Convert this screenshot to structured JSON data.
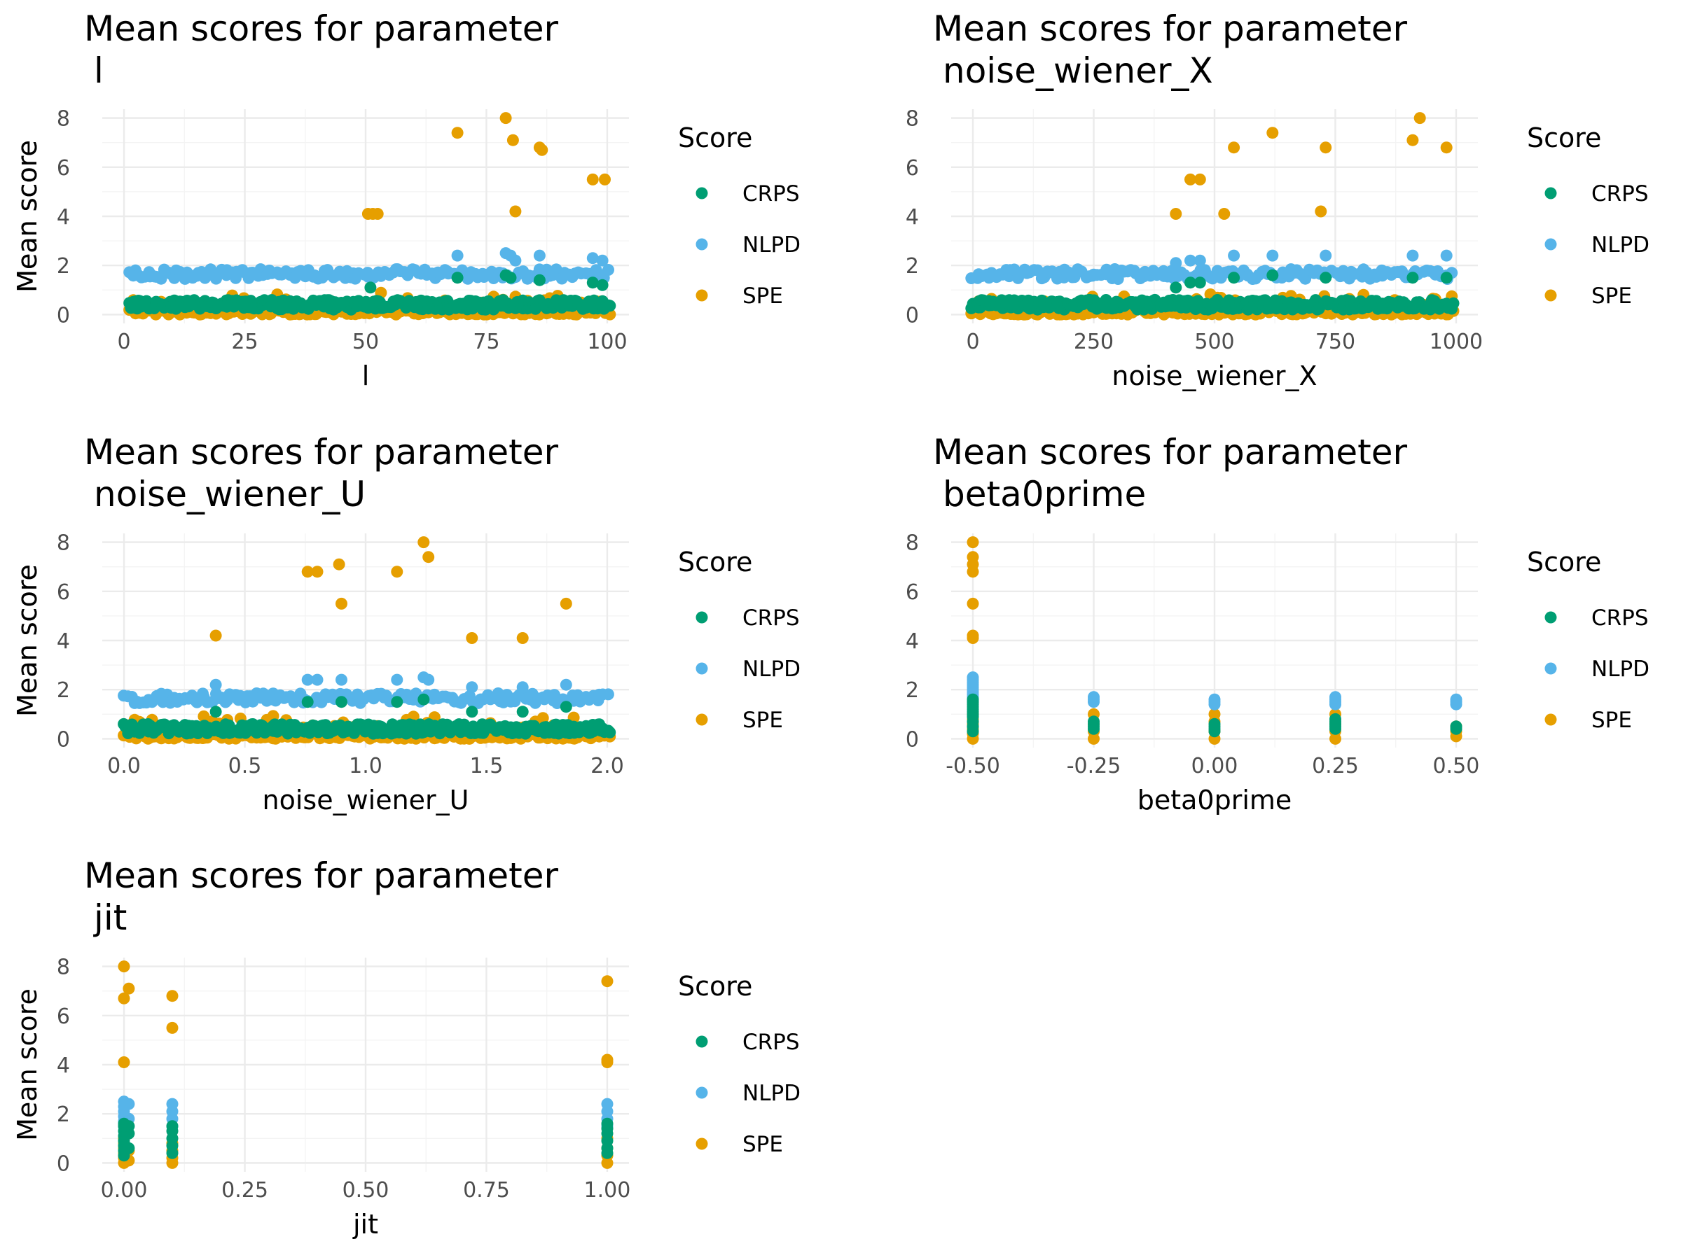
{
  "chart_data": [
    {
      "type": "scatter",
      "title": "Mean scores for parameter",
      "title_param": "l",
      "xlabel": "l",
      "ylabel": "Mean score",
      "xlim": [
        0,
        100
      ],
      "ylim": [
        0,
        8
      ],
      "xticks": [
        0,
        25,
        50,
        75,
        100
      ],
      "xtick_labels": [
        "0",
        "25",
        "50",
        "75",
        "100"
      ],
      "yticks": [
        0,
        2,
        4,
        6,
        8
      ],
      "ytick_labels": [
        "0",
        "2",
        "4",
        "6",
        "8"
      ],
      "x_range_observed": [
        1,
        100
      ],
      "bands": {
        "CRPS": [
          0.2,
          0.6
        ],
        "NLPD": [
          1.45,
          1.85
        ],
        "SPE": [
          0.0,
          1.0
        ]
      },
      "outliers": {
        "SPE": [
          [
            50.5,
            4.1
          ],
          [
            51.5,
            4.1
          ],
          [
            52.5,
            4.1
          ],
          [
            69,
            7.4
          ],
          [
            79,
            8.0
          ],
          [
            80.5,
            7.1
          ],
          [
            81,
            4.2
          ],
          [
            86,
            6.8
          ],
          [
            86.5,
            6.7
          ],
          [
            97,
            5.5
          ],
          [
            99.5,
            5.5
          ]
        ],
        "NLPD": [
          [
            69,
            2.4
          ],
          [
            79,
            2.5
          ],
          [
            80,
            2.4
          ],
          [
            81,
            2.2
          ],
          [
            86,
            2.4
          ],
          [
            97,
            2.3
          ],
          [
            99,
            2.2
          ]
        ],
        "CRPS": [
          [
            51,
            1.1
          ],
          [
            69,
            1.5
          ],
          [
            79,
            1.6
          ],
          [
            80,
            1.5
          ],
          [
            86,
            1.4
          ],
          [
            97,
            1.3
          ],
          [
            99,
            1.2
          ]
        ]
      }
    },
    {
      "type": "scatter",
      "title": "Mean scores for parameter",
      "title_param": "noise_wiener_X",
      "xlabel": "noise_wiener_X",
      "ylabel": "Mean score",
      "xlim": [
        0,
        1000
      ],
      "ylim": [
        0,
        8
      ],
      "xticks": [
        0,
        250,
        500,
        750,
        1000
      ],
      "xtick_labels": [
        "0",
        "250",
        "500",
        "750",
        "1000"
      ],
      "yticks": [
        0,
        2,
        4,
        6,
        8
      ],
      "ytick_labels": [
        "0",
        "2",
        "4",
        "6",
        "8"
      ],
      "x_range_observed": [
        0,
        990
      ],
      "bands": {
        "CRPS": [
          0.2,
          0.6
        ],
        "NLPD": [
          1.45,
          1.85
        ],
        "SPE": [
          0.0,
          1.0
        ]
      },
      "outliers": {
        "SPE": [
          [
            420,
            4.1
          ],
          [
            450,
            5.5
          ],
          [
            470,
            5.5
          ],
          [
            520,
            4.1
          ],
          [
            540,
            6.8
          ],
          [
            620,
            7.4
          ],
          [
            720,
            4.2
          ],
          [
            730,
            6.8
          ],
          [
            910,
            7.1
          ],
          [
            925,
            8.0
          ],
          [
            980,
            6.8
          ]
        ],
        "NLPD": [
          [
            420,
            2.1
          ],
          [
            450,
            2.2
          ],
          [
            470,
            2.2
          ],
          [
            540,
            2.4
          ],
          [
            620,
            2.4
          ],
          [
            730,
            2.4
          ],
          [
            910,
            2.4
          ],
          [
            980,
            2.4
          ]
        ],
        "CRPS": [
          [
            420,
            1.1
          ],
          [
            450,
            1.3
          ],
          [
            470,
            1.3
          ],
          [
            540,
            1.5
          ],
          [
            620,
            1.6
          ],
          [
            730,
            1.5
          ],
          [
            910,
            1.5
          ],
          [
            980,
            1.5
          ]
        ]
      }
    },
    {
      "type": "scatter",
      "title": "Mean scores for parameter",
      "title_param": "noise_wiener_U",
      "xlabel": "noise_wiener_U",
      "ylabel": "Mean score",
      "xlim": [
        0.0,
        2.0
      ],
      "ylim": [
        0,
        8
      ],
      "xticks": [
        0.0,
        0.5,
        1.0,
        1.5,
        2.0
      ],
      "xtick_labels": [
        "0.0",
        "0.5",
        "1.0",
        "1.5",
        "2.0"
      ],
      "yticks": [
        0,
        2,
        4,
        6,
        8
      ],
      "ytick_labels": [
        "0",
        "2",
        "4",
        "6",
        "8"
      ],
      "x_range_observed": [
        0.0,
        2.0
      ],
      "bands": {
        "CRPS": [
          0.2,
          0.6
        ],
        "NLPD": [
          1.45,
          1.85
        ],
        "SPE": [
          0.0,
          1.0
        ]
      },
      "outliers": {
        "SPE": [
          [
            0.38,
            4.2
          ],
          [
            0.76,
            6.8
          ],
          [
            0.8,
            6.8
          ],
          [
            0.89,
            7.1
          ],
          [
            0.9,
            5.5
          ],
          [
            1.13,
            6.8
          ],
          [
            1.24,
            8.0
          ],
          [
            1.26,
            7.4
          ],
          [
            1.44,
            4.1
          ],
          [
            1.65,
            4.1
          ],
          [
            1.83,
            5.5
          ]
        ],
        "NLPD": [
          [
            0.38,
            2.2
          ],
          [
            0.76,
            2.4
          ],
          [
            0.8,
            2.4
          ],
          [
            0.9,
            2.4
          ],
          [
            1.13,
            2.4
          ],
          [
            1.24,
            2.5
          ],
          [
            1.26,
            2.4
          ],
          [
            1.44,
            2.1
          ],
          [
            1.65,
            2.1
          ],
          [
            1.83,
            2.2
          ]
        ],
        "CRPS": [
          [
            0.38,
            1.1
          ],
          [
            0.76,
            1.5
          ],
          [
            0.9,
            1.5
          ],
          [
            1.13,
            1.5
          ],
          [
            1.24,
            1.6
          ],
          [
            1.44,
            1.1
          ],
          [
            1.65,
            1.1
          ],
          [
            1.83,
            1.3
          ]
        ]
      }
    },
    {
      "type": "scatter",
      "title": "Mean scores for parameter",
      "title_param": "beta0prime",
      "xlabel": "beta0prime",
      "ylabel": "Mean score",
      "xlim": [
        -0.5,
        0.5
      ],
      "ylim": [
        0,
        8
      ],
      "xticks": [
        -0.5,
        -0.25,
        0.0,
        0.25,
        0.5
      ],
      "xtick_labels": [
        "-0.50",
        "-0.25",
        "0.00",
        "0.25",
        "0.50"
      ],
      "yticks": [
        0,
        2,
        4,
        6,
        8
      ],
      "ytick_labels": [
        "0",
        "2",
        "4",
        "6",
        "8"
      ],
      "columns": [
        {
          "x": -0.5,
          "SPE": [
            0,
            0.2,
            0.4,
            0.6,
            0.8,
            1.0,
            4.1,
            4.2,
            5.5,
            6.8,
            7.1,
            7.4,
            8.0
          ],
          "NLPD": [
            1.5,
            1.6,
            1.7,
            1.8,
            1.9,
            2.0,
            2.1,
            2.2,
            2.3,
            2.4,
            2.5
          ],
          "CRPS": [
            0.3,
            0.5,
            0.7,
            0.9,
            1.0,
            1.1,
            1.2,
            1.3,
            1.4,
            1.5,
            1.6
          ]
        },
        {
          "x": -0.25,
          "SPE": [
            0,
            0.3,
            0.6,
            1.0
          ],
          "NLPD": [
            1.5,
            1.6,
            1.7
          ],
          "CRPS": [
            0.4,
            0.5,
            0.6,
            0.7
          ]
        },
        {
          "x": 0.0,
          "SPE": [
            0,
            0.3,
            0.7,
            1.0
          ],
          "NLPD": [
            1.4,
            1.5,
            1.6
          ],
          "CRPS": [
            0.3,
            0.4,
            0.5,
            0.6
          ]
        },
        {
          "x": 0.25,
          "SPE": [
            0,
            0.3,
            0.6,
            1.0
          ],
          "NLPD": [
            1.4,
            1.5,
            1.6,
            1.7
          ],
          "CRPS": [
            0.4,
            0.5,
            0.6,
            0.7,
            0.8
          ]
        },
        {
          "x": 0.5,
          "SPE": [
            0.1,
            0.3,
            0.5
          ],
          "NLPD": [
            1.4,
            1.5,
            1.6
          ],
          "CRPS": [
            0.4,
            0.5
          ]
        }
      ]
    },
    {
      "type": "scatter",
      "title": "Mean scores for parameter",
      "title_param": "jit",
      "xlabel": "jit",
      "ylabel": "Mean score",
      "xlim": [
        0.0,
        1.0
      ],
      "ylim": [
        0,
        8
      ],
      "xticks": [
        0.0,
        0.25,
        0.5,
        0.75,
        1.0
      ],
      "xtick_labels": [
        "0.00",
        "0.25",
        "0.50",
        "0.75",
        "1.00"
      ],
      "yticks": [
        0,
        2,
        4,
        6,
        8
      ],
      "ytick_labels": [
        "0",
        "2",
        "4",
        "6",
        "8"
      ],
      "columns": [
        {
          "x": 0.0,
          "SPE": [
            0,
            0.2,
            0.4,
            0.6,
            0.8,
            1.0,
            4.1,
            6.7,
            8.0
          ],
          "NLPD": [
            1.5,
            1.7,
            1.9,
            2.1,
            2.3,
            2.5
          ],
          "CRPS": [
            0.3,
            0.5,
            0.7,
            0.9,
            1.1,
            1.3,
            1.5,
            1.6
          ]
        },
        {
          "x": 0.01,
          "SPE": [
            0.1,
            0.5,
            7.1
          ],
          "NLPD": [
            1.8,
            2.4
          ],
          "CRPS": [
            0.6,
            1.2,
            1.5
          ]
        },
        {
          "x": 0.1,
          "SPE": [
            0,
            0.2,
            0.5,
            0.8,
            5.5,
            6.8
          ],
          "NLPD": [
            1.5,
            1.8,
            2.1,
            2.4
          ],
          "CRPS": [
            0.4,
            0.7,
            1.0,
            1.3,
            1.5
          ]
        },
        {
          "x": 1.0,
          "SPE": [
            0,
            0.3,
            0.6,
            1.0,
            4.1,
            4.2,
            7.4
          ],
          "NLPD": [
            1.5,
            1.8,
            2.1,
            2.4
          ],
          "CRPS": [
            0.4,
            0.6,
            0.9,
            1.2,
            1.4,
            1.6
          ]
        }
      ]
    }
  ],
  "legend": {
    "title": "Score",
    "entries": [
      {
        "name": "CRPS",
        "color": "#009E73"
      },
      {
        "name": "NLPD",
        "color": "#56B4E9"
      },
      {
        "name": "SPE",
        "color": "#E69F00"
      }
    ]
  },
  "colors": {
    "CRPS": "#009E73",
    "NLPD": "#56B4E9",
    "SPE": "#E69F00",
    "grid_major": "#ebebeb",
    "grid_minor": "#f3f3f3",
    "tick_text": "#4d4d4d"
  }
}
